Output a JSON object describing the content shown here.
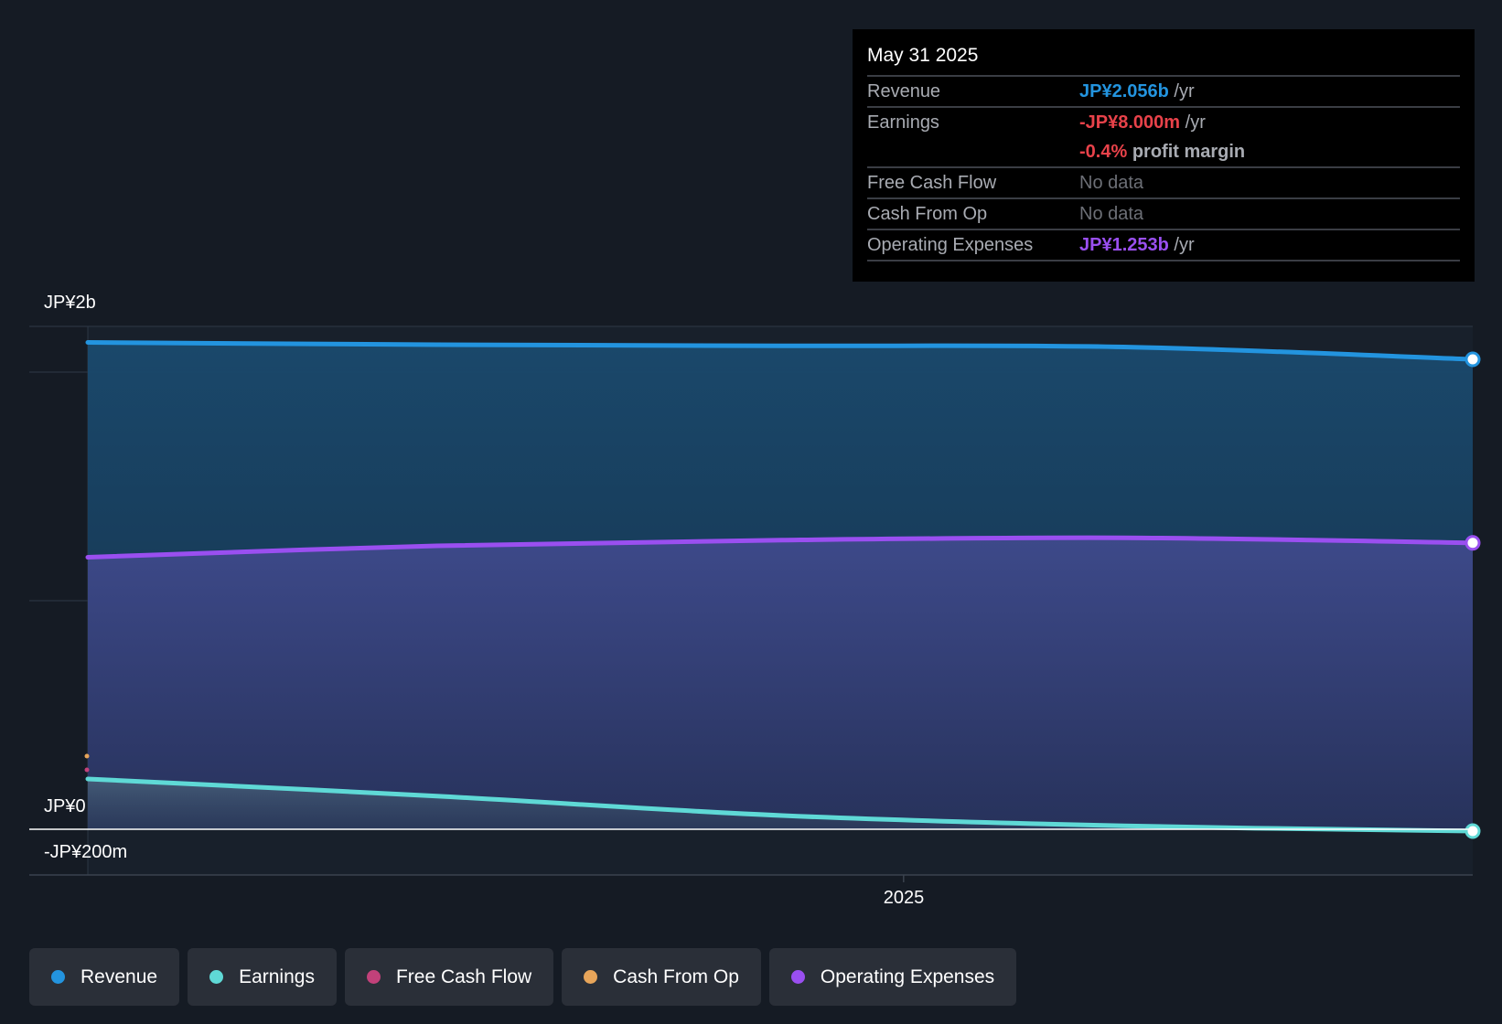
{
  "tooltip": {
    "date": "May 31 2025",
    "rows": [
      {
        "name": "Revenue",
        "value": "JP¥2.056b",
        "unit": "/yr",
        "color": "#2394df"
      },
      {
        "name": "Earnings",
        "value": "-JP¥8.000m",
        "unit": "/yr",
        "color": "#e8424a",
        "extra_value": "-0.4%",
        "extra_unit": "profit margin"
      },
      {
        "name": "Free Cash Flow",
        "value": "No data"
      },
      {
        "name": "Cash From Op",
        "value": "No data"
      },
      {
        "name": "Operating Expenses",
        "value": "JP¥1.253b",
        "unit": "/yr",
        "color": "#9a4ff0"
      }
    ]
  },
  "colors": {
    "revenue": "#2394df",
    "earnings": "#5fd9d6",
    "free_cash_flow": "#c2417a",
    "cash_from_op": "#e7a55a",
    "operating_expenses": "#9a4ff0",
    "background": "#151b24"
  },
  "legend": [
    {
      "label": "Revenue",
      "color": "#2394df"
    },
    {
      "label": "Earnings",
      "color": "#5fd9d6"
    },
    {
      "label": "Free Cash Flow",
      "color": "#c2417a"
    },
    {
      "label": "Cash From Op",
      "color": "#e7a55a"
    },
    {
      "label": "Operating Expenses",
      "color": "#9a4ff0"
    }
  ],
  "chart_data": {
    "type": "area",
    "y_tick_labels": {
      "top": "JP¥2b",
      "zero": "JP¥0",
      "bottom": "-JP¥200m"
    },
    "ylim": [
      -200,
      2200
    ],
    "y_unit": "JP¥m",
    "x_tick_label": "2025",
    "x_tick_date": "2025-01-01",
    "x": [
      "2024-05-31",
      "2024-08-31",
      "2024-11-30",
      "2025-02-28",
      "2025-05-31"
    ],
    "series": [
      {
        "name": "Revenue",
        "key": "revenue",
        "values": [
          2130,
          2120,
          2115,
          2110,
          2056
        ]
      },
      {
        "name": "Operating Expenses",
        "key": "operating_expenses",
        "values": [
          1190,
          1240,
          1265,
          1275,
          1253
        ]
      },
      {
        "name": "Earnings",
        "key": "earnings",
        "values": [
          220,
          145,
          60,
          15,
          -8
        ]
      }
    ],
    "fcf_start_value": 260,
    "cfo_start_value": 320,
    "grid": true
  }
}
